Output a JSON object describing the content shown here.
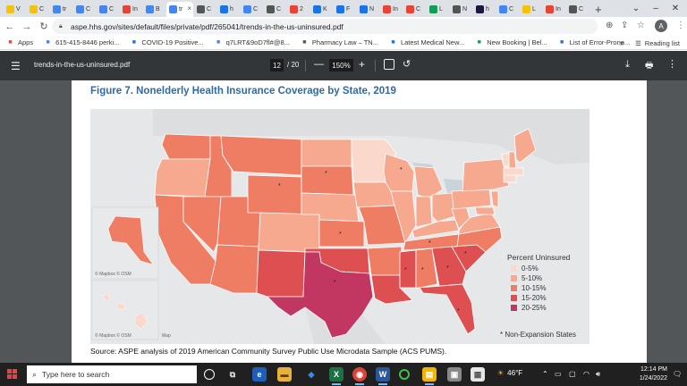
{
  "browser": {
    "tabs": [
      {
        "label": "V",
        "icon": "yellow-square",
        "color": "#f4c20d"
      },
      {
        "label": "C",
        "icon": "yellow-square",
        "color": "#f4c20d"
      },
      {
        "label": "tr",
        "icon": "doc-icon",
        "color": "#4285f4"
      },
      {
        "label": "C",
        "icon": "doc-icon",
        "color": "#4285f4"
      },
      {
        "label": "C",
        "icon": "doc-icon",
        "color": "#4285f4"
      },
      {
        "label": "In",
        "icon": "gmail-icon",
        "color": "#ea4335"
      },
      {
        "label": "B",
        "icon": "refresh-icon",
        "color": "#4285f4"
      },
      {
        "label": "tr",
        "icon": "pdf-icon",
        "color": "#4285f4",
        "active": true
      },
      {
        "label": "C",
        "icon": "globe-icon",
        "color": "#555555"
      },
      {
        "label": "h",
        "icon": "blue-icon",
        "color": "#1a73e8"
      },
      {
        "label": "C",
        "icon": "loading-icon",
        "color": "#4285f4"
      },
      {
        "label": "C",
        "icon": "globe-icon",
        "color": "#555555"
      },
      {
        "label": "2",
        "icon": "red-circle-icon",
        "color": "#ea4335"
      },
      {
        "label": "K",
        "icon": "blue-icon",
        "color": "#1a73e8"
      },
      {
        "label": "F",
        "icon": "blue-icon",
        "color": "#1a73e8"
      },
      {
        "label": "N",
        "icon": "blue-icon",
        "color": "#1a73e8"
      },
      {
        "label": "In",
        "icon": "gmail-icon",
        "color": "#ea4335"
      },
      {
        "label": "C",
        "icon": "gmail-icon",
        "color": "#ea4335"
      },
      {
        "label": "L",
        "icon": "green-icon",
        "color": "#0f9d58"
      },
      {
        "label": "N",
        "icon": "globe-icon",
        "color": "#555555"
      },
      {
        "label": "h",
        "icon": "cb-icon",
        "color": "#1a1a40"
      },
      {
        "label": "C",
        "icon": "google-icon",
        "color": "#4285f4"
      },
      {
        "label": "L",
        "icon": "yellow-square",
        "color": "#f4c20d"
      },
      {
        "label": "In",
        "icon": "gmail-icon",
        "color": "#ea4335"
      },
      {
        "label": "C",
        "icon": "globe-icon",
        "color": "#555555"
      }
    ],
    "new_tab": "+",
    "url": "aspe.hhs.gov/sites/default/files/private/pdf/265041/trends-in-the-us-uninsured.pdf",
    "profile_initial": "A",
    "bookmarks": [
      {
        "label": "Apps",
        "icon": "apps-grid-icon",
        "color": "#ea4335"
      },
      {
        "label": "615-415-8446 perki...",
        "icon": "google-icon",
        "color": "#4285f4"
      },
      {
        "label": "COVID-19 Positive...",
        "icon": "hospital-icon",
        "color": "#1a73e8"
      },
      {
        "label": "q7LRT&9oD7fl#@8...",
        "icon": "google-icon",
        "color": "#4285f4"
      },
      {
        "label": "Pharmacy Law – TN...",
        "icon": "globe-icon",
        "color": "#555555"
      },
      {
        "label": "Latest Medical New...",
        "icon": "m-icon",
        "color": "#1a73e8"
      },
      {
        "label": "New Booking | Bel...",
        "icon": "booking-icon",
        "color": "#0f9d58"
      },
      {
        "label": "List of Error-Prone...",
        "icon": "check-badge-icon",
        "color": "#1a73e8"
      }
    ],
    "reading_list": "Reading list"
  },
  "pdf": {
    "filename": "trends-in-the-us-uninsured.pdf",
    "page_current": "12",
    "page_total": "/ 20",
    "zoom": "150%",
    "figure_title": "Figure 7. Nonelderly Health Insurance Coverage by State, 2019",
    "source": "Source: ASPE analysis of 2019 American Community Survey Public Use Microdata Sample (ACS PUMS).",
    "map_credits": [
      "© Mapbox © OSM",
      "© Mapbox © OSM",
      "Map"
    ]
  },
  "legend": {
    "title": "Percent Uninsured",
    "items": [
      {
        "label": "0-5%",
        "color": "#fbd8cc"
      },
      {
        "label": "5-10%",
        "color": "#f6a98f"
      },
      {
        "label": "10-15%",
        "color": "#ef7d63"
      },
      {
        "label": "15-20%",
        "color": "#de4f52"
      },
      {
        "label": "20-25%",
        "color": "#c23762"
      }
    ],
    "note": "* Non-Expansion States"
  },
  "taskbar": {
    "search_placeholder": "Type here to search",
    "weather": "46°F",
    "time": "12:14 PM",
    "date": "1/24/2022"
  }
}
